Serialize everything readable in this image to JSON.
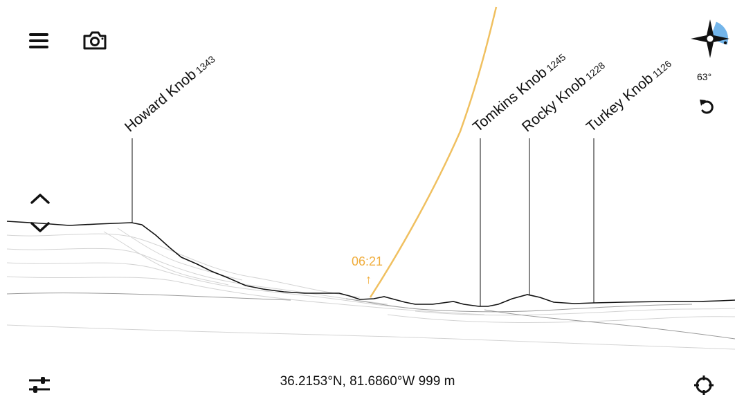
{
  "toolbar": {
    "menu_icon": "menu-icon",
    "camera_icon": "camera-icon",
    "filter_icon": "sliders-icon",
    "locate_icon": "crosshair-icon",
    "tilt_up_icon": "chevron-up-icon",
    "tilt_down_icon": "chevron-down-icon",
    "reset_icon": "rotate-ccw-icon",
    "compass_icon": "compass-icon"
  },
  "compass": {
    "heading": "63°"
  },
  "peaks": [
    {
      "name": "Howard Knob",
      "elevation": "1343"
    },
    {
      "name": "Tomkins Knob",
      "elevation": "1245"
    },
    {
      "name": "Rocky Knob",
      "elevation": "1228"
    },
    {
      "name": "Turkey Knob",
      "elevation": "1126"
    }
  ],
  "sun": {
    "time": "06:21",
    "arrow": "↑",
    "color": "#f0ad3c"
  },
  "location": {
    "coords": "36.2153°N, 81.6860°W 999 m"
  }
}
